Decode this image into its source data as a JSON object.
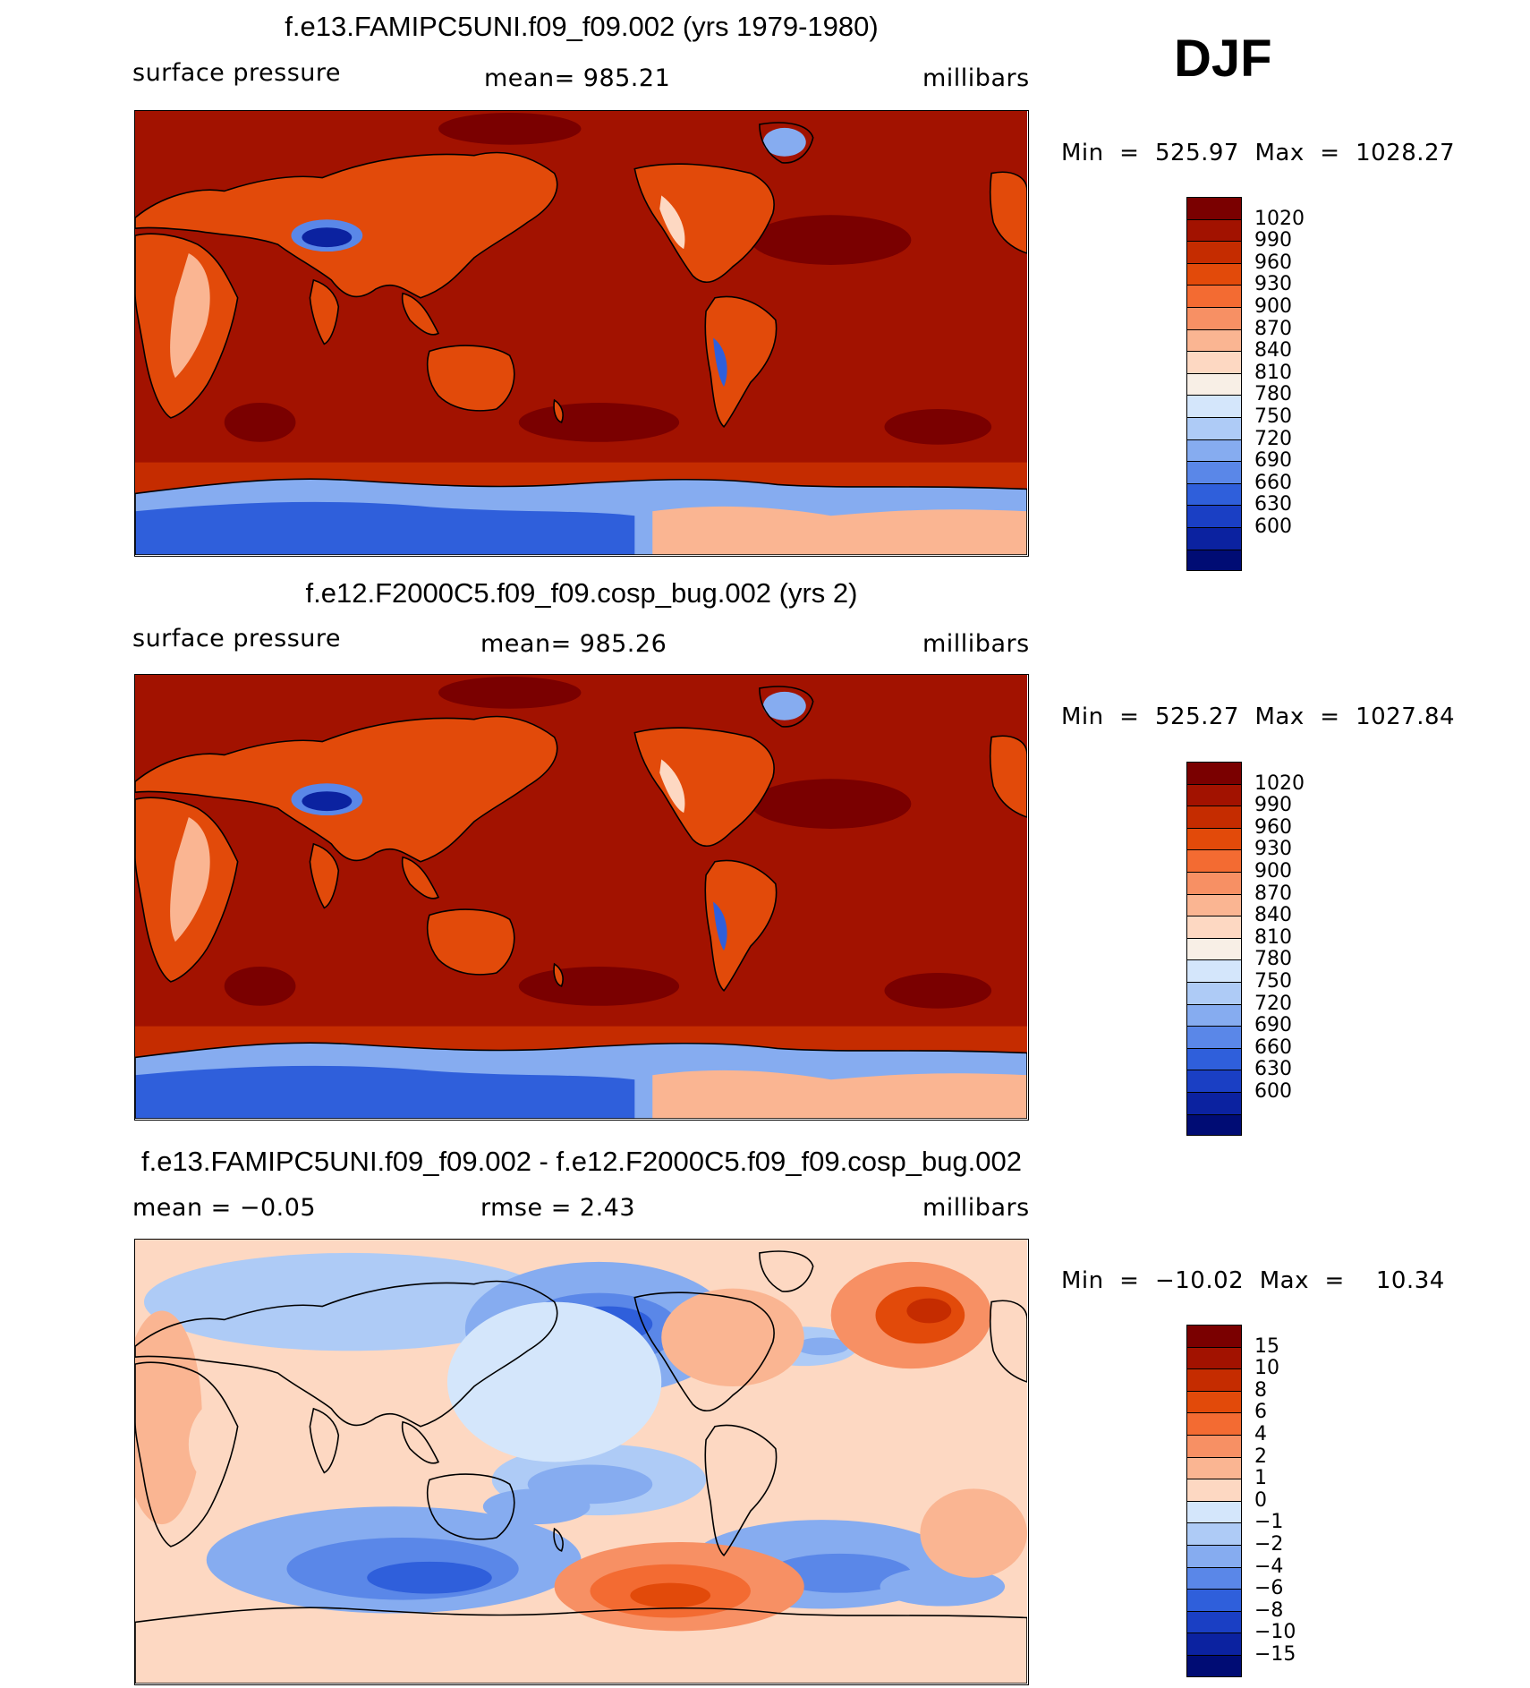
{
  "season": "DJF",
  "panels": [
    {
      "title": "f.e13.FAMIPC5UNI.f09_f09.002 (yrs 1979-1980)",
      "left_label": "surface pressure",
      "center_label": "mean=  985.21",
      "right_label": "millibars",
      "minmax": "Min  =  525.97  Max  =  1028.27",
      "kind": "pressure"
    },
    {
      "title": "f.e12.F2000C5.f09_f09.cosp_bug.002 (yrs 2)",
      "left_label": "surface pressure",
      "center_label": "mean=  985.26",
      "right_label": "millibars",
      "minmax": "Min  =  525.27  Max  =  1027.84",
      "kind": "pressure"
    },
    {
      "title": "f.e13.FAMIPC5UNI.f09_f09.002 - f.e12.F2000C5.f09_f09.cosp_bug.002",
      "left_label": "mean  =    −0.05",
      "center_label": "rmse  =      2.43",
      "right_label": "millibars",
      "minmax": "Min  =  −10.02  Max  =    10.34",
      "kind": "difference"
    }
  ],
  "chart_data": [
    {
      "type": "heatmap",
      "title": "f.e13.FAMIPC5UNI.f09_f09.002 (yrs 1979-1980)",
      "variable": "surface pressure",
      "units": "millibars",
      "mean": 985.21,
      "min": 525.97,
      "max": 1028.27,
      "contour_levels": [
        "1020",
        "990",
        "960",
        "930",
        "900",
        "870",
        "840",
        "810",
        "780",
        "750",
        "720",
        "690",
        "660",
        "630",
        "600"
      ],
      "colors": [
        "#7a0000",
        "#a21200",
        "#c52c00",
        "#e24a0a",
        "#f36b32",
        "#f79064",
        "#fab592",
        "#fdd8c2",
        "#f8efe6",
        "#d4e6fb",
        "#aecbf6",
        "#86acf0",
        "#5a87e8",
        "#2f5fdb",
        "#1a3fc4",
        "#0b22a0",
        "#000c74"
      ]
    },
    {
      "type": "heatmap",
      "title": "f.e12.F2000C5.f09_f09.cosp_bug.002 (yrs 2)",
      "variable": "surface pressure",
      "units": "millibars",
      "mean": 985.26,
      "min": 525.27,
      "max": 1027.84,
      "contour_levels": [
        "1020",
        "990",
        "960",
        "930",
        "900",
        "870",
        "840",
        "810",
        "780",
        "750",
        "720",
        "690",
        "660",
        "630",
        "600"
      ],
      "colors": [
        "#7a0000",
        "#a21200",
        "#c52c00",
        "#e24a0a",
        "#f36b32",
        "#f79064",
        "#fab592",
        "#fdd8c2",
        "#f8efe6",
        "#d4e6fb",
        "#aecbf6",
        "#86acf0",
        "#5a87e8",
        "#2f5fdb",
        "#1a3fc4",
        "#0b22a0",
        "#000c74"
      ]
    },
    {
      "type": "heatmap",
      "title": "f.e13.FAMIPC5UNI.f09_f09.002 - f.e12.F2000C5.f09_f09.cosp_bug.002",
      "variable": "surface pressure difference",
      "units": "millibars",
      "mean": -0.05,
      "rmse": 2.43,
      "min": -10.02,
      "max": 10.34,
      "contour_levels": [
        "15",
        "10",
        "8",
        "6",
        "4",
        "2",
        "1",
        "0",
        "−1",
        "−2",
        "−4",
        "−6",
        "−8",
        "−10",
        "−15"
      ],
      "colors": [
        "#7a0000",
        "#a21200",
        "#c52c00",
        "#e24a0a",
        "#f36b32",
        "#f79064",
        "#fab592",
        "#fdd8c2",
        "#d4e6fb",
        "#aecbf6",
        "#86acf0",
        "#5a87e8",
        "#2f5fdb",
        "#1a3fc4",
        "#0b22a0",
        "#000c74"
      ]
    }
  ]
}
